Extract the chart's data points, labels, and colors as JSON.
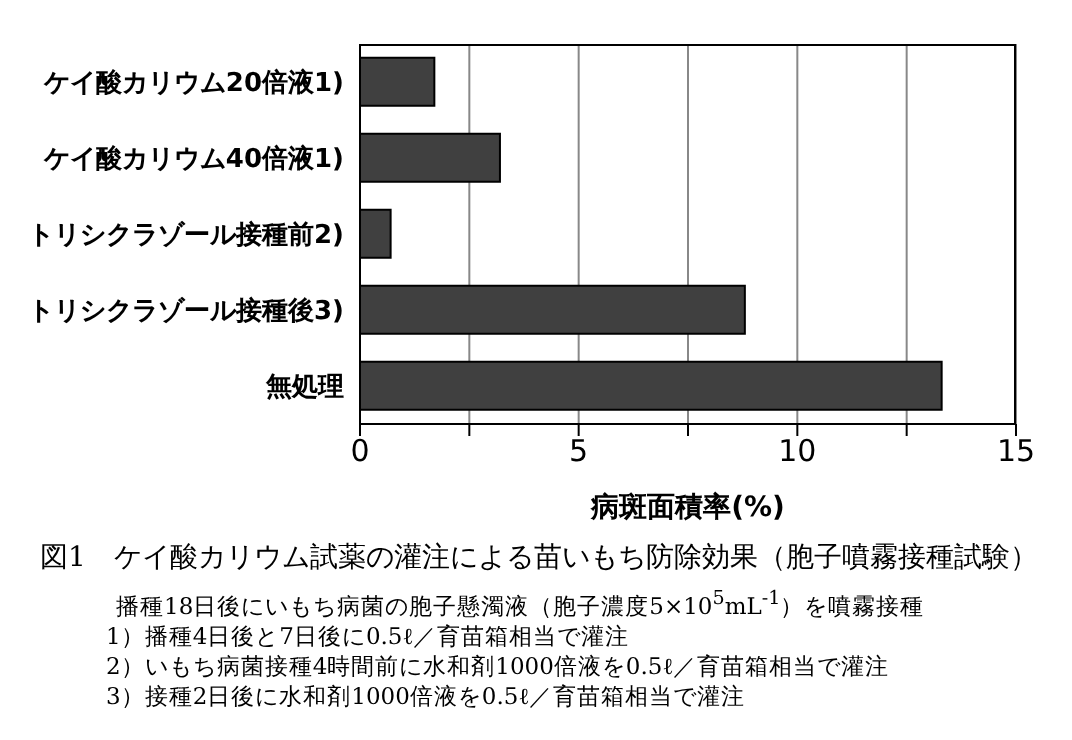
{
  "chart_data": {
    "type": "bar",
    "orientation": "horizontal",
    "title": "図1　ケイ酸カリウム試薬の灌注による苗いもち防除効果（胞子噴霧接種試験）",
    "categories": [
      "ケイ酸カリウム20倍液1)",
      "ケイ酸カリウム40倍液1)",
      "トリシクラゾール接種前2)",
      "トリシクラゾール接種後3)",
      "無処理"
    ],
    "values": [
      1.7,
      3.2,
      0.7,
      8.8,
      13.3
    ],
    "color": "#404040",
    "xlabel": "病斑面積率(%)",
    "xlim": [
      0,
      15
    ],
    "xticks": [
      0,
      {
        "value": 2.5,
        "label": null
      },
      5,
      {
        "value": 7.5,
        "label": null
      },
      10,
      {
        "value": 12.5,
        "label": null
      },
      15
    ],
    "grid": "x",
    "annotations": [
      "播種18日後にいもち病菌の胞子懸濁液（胞子濃度5×10$^{5}$mL$^{-1}$）を噴霧接種",
      "1）播種4日後と7日後に0.5ℓ／育苗箱相当で灌注",
      "2）いもち病菌接種4時間前に水和剤1000倍液を0.5ℓ／育苗箱相当で灌注",
      "3）接種2日後に水和剤1000倍液を0.5ℓ／育苗箱相当で灌注"
    ]
  }
}
